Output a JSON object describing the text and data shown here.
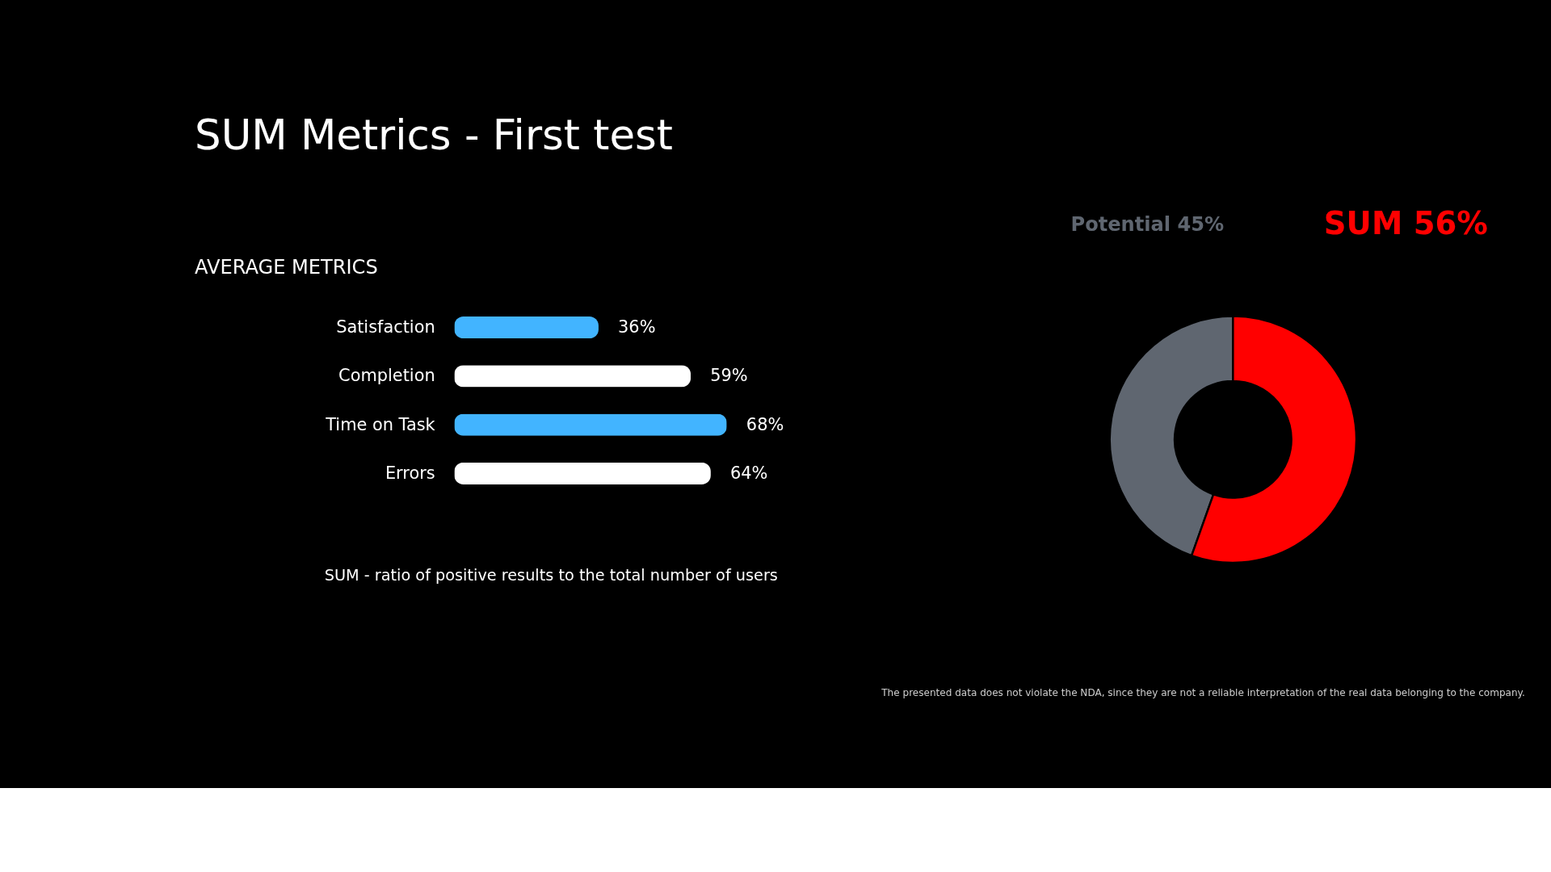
{
  "chart_data": [
    {
      "type": "bar",
      "orientation": "horizontal",
      "title": "SUM Metrics - First test",
      "subtitle": "AVERAGE METRICS",
      "categories": [
        "Satisfaction",
        "Completion",
        "Time on Task",
        "Errors"
      ],
      "values": [
        36,
        59,
        68,
        64
      ],
      "colors": [
        "#42b4ff",
        "#ffffff",
        "#42b4ff",
        "#ffffff"
      ],
      "value_labels": [
        "36%",
        "59%",
        "68%",
        "64%"
      ],
      "annotations": [
        "SUM - ratio of positive results to the total number of users"
      ]
    },
    {
      "type": "donut",
      "categories": [
        "Potential",
        "SUM"
      ],
      "values": [
        45,
        56
      ],
      "colors": [
        "#5f6670",
        "#ff0000"
      ],
      "value_labels": [
        "45%",
        "56%"
      ],
      "annotations": [
        "The presented data does not violate the NDA, since they are not a reliable interpretation of the real data belonging to the company."
      ]
    }
  ]
}
